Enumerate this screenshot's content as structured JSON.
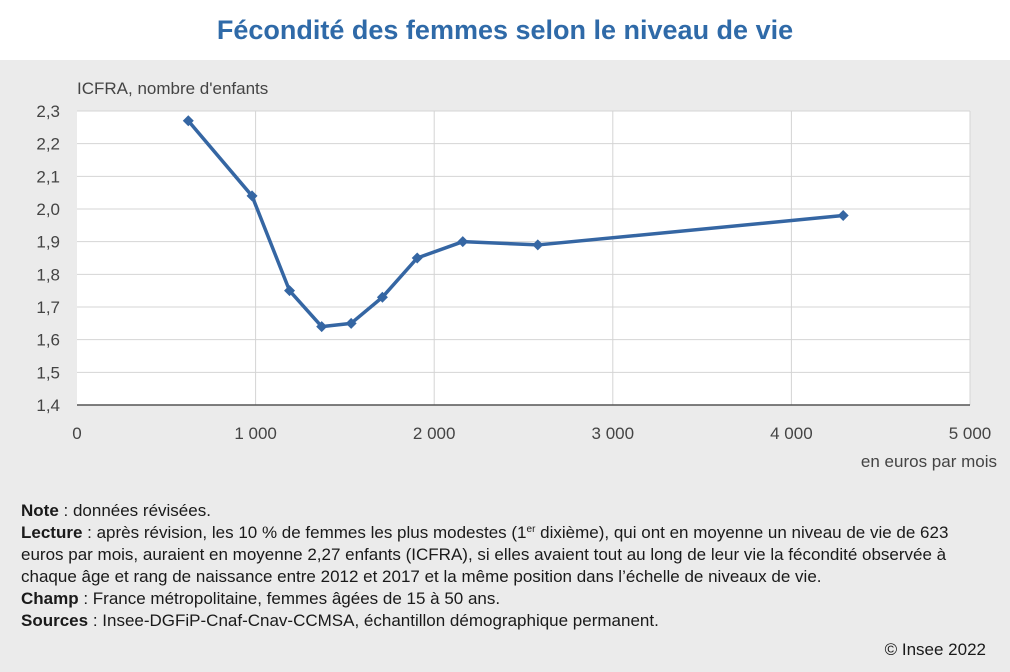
{
  "title": "Fécondité des femmes selon le niveau de vie",
  "chart_data": {
    "type": "line",
    "ylabel": "ICFRA, nombre d'enfants",
    "xlabel": "en euros par mois",
    "xlim": [
      0,
      5000
    ],
    "ylim": [
      1.4,
      2.3
    ],
    "x_ticks": [
      0,
      1000,
      2000,
      3000,
      4000,
      5000
    ],
    "x_tick_labels": [
      "0",
      "1 000",
      "2 000",
      "3 000",
      "4 000",
      "5 000"
    ],
    "y_ticks": [
      1.4,
      1.5,
      1.6,
      1.7,
      1.8,
      1.9,
      2.0,
      2.1,
      2.2,
      2.3
    ],
    "y_tick_labels": [
      "1,4",
      "1,5",
      "1,6",
      "1,7",
      "1,8",
      "1,9",
      "2,0",
      "2,1",
      "2,2",
      "2,3"
    ],
    "grid": true,
    "marker": "diamond",
    "color": "#3566a3",
    "series": [
      {
        "x": [
          623,
          980,
          1190,
          1370,
          1535,
          1710,
          1905,
          2160,
          2580,
          4290
        ],
        "y": [
          2.27,
          2.04,
          1.75,
          1.64,
          1.65,
          1.73,
          1.85,
          1.9,
          1.89,
          1.98
        ]
      }
    ]
  },
  "notes": {
    "note_label": "Note",
    "note_text": " : données révisées.",
    "lecture_label": "Lecture",
    "lecture_text_before": " : après révision, les 10 % de femmes les plus modestes (1",
    "lecture_sup": "er",
    "lecture_text_after": " dixième), qui ont en moyenne un niveau de vie de 623 euros par mois, auraient en moyenne 2,27 enfants (ICFRA), si elles avaient tout au long de leur vie la fécondité observée à chaque âge et rang de naissance entre 2012 et 2017 et la même position dans l’échelle de niveaux de vie.",
    "champ_label": "Champ",
    "champ_text": " : France métropolitaine, femmes âgées de 15 à 50 ans.",
    "sources_label": "Sources",
    "sources_text": " : Insee-DGFiP-Cnaf-Cnav-CCMSA, échantillon démographique permanent."
  },
  "copyright": "© Insee 2022"
}
